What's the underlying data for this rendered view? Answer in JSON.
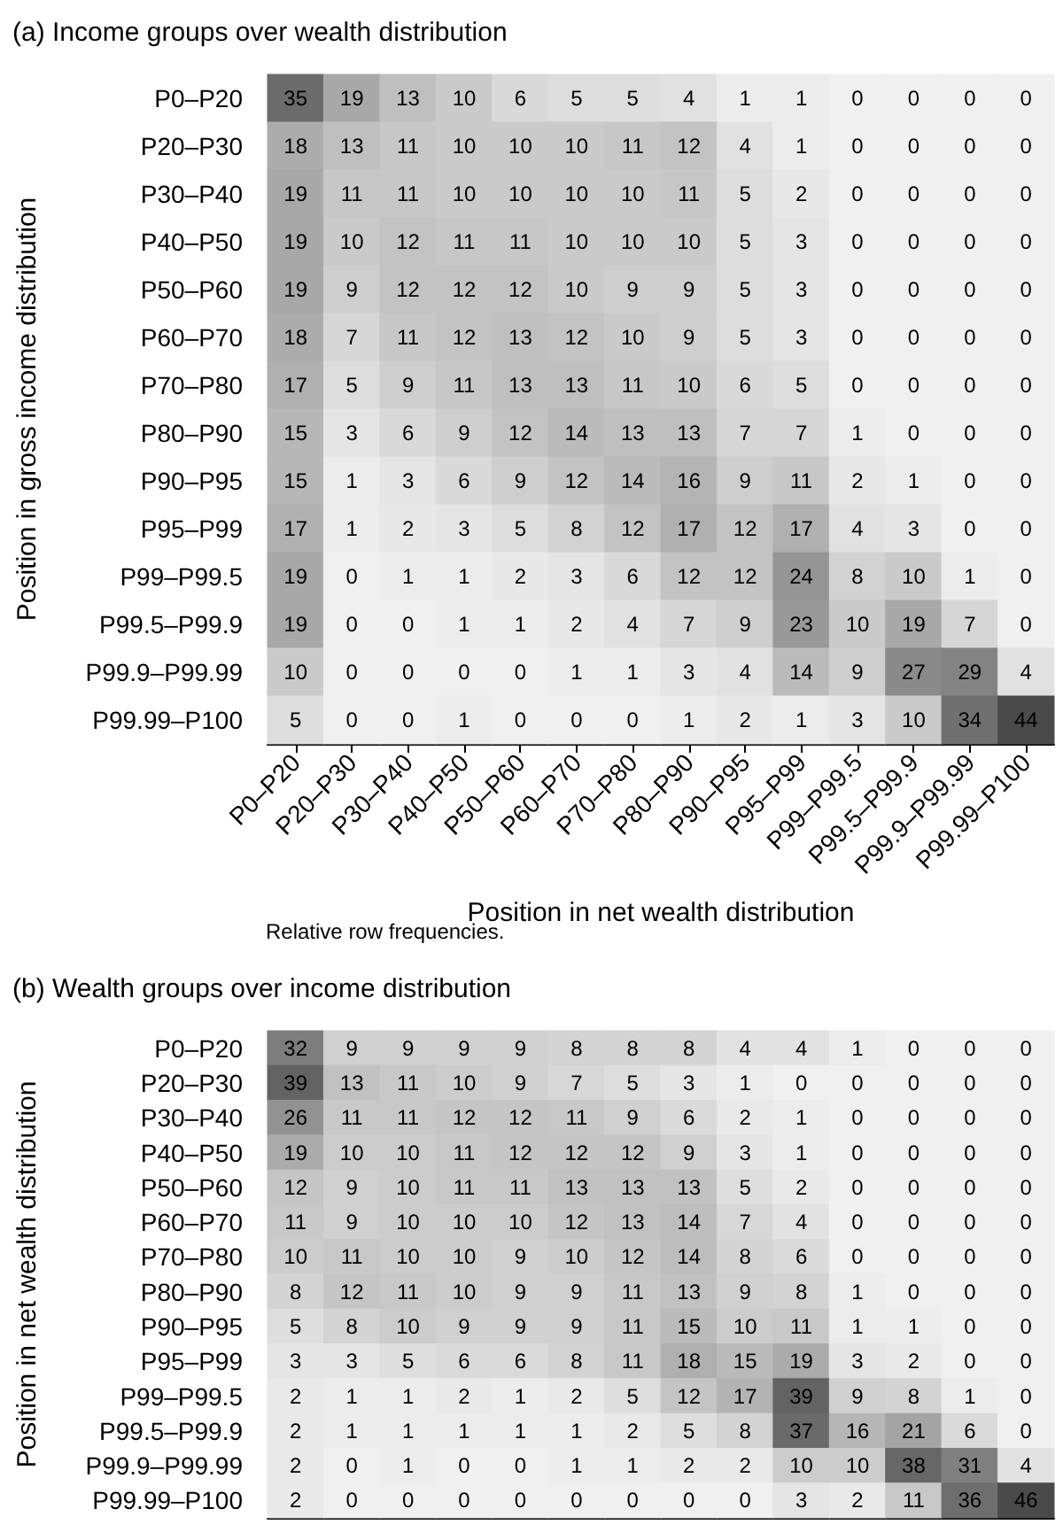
{
  "chart_data": [
    {
      "type": "heatmap",
      "title": "(a) Income groups over wealth distribution",
      "xlabel": "Position in net wealth distribution",
      "ylabel": "Position in gross income distribution",
      "annotations": [
        "Relative row frequencies."
      ],
      "data_labels": true,
      "categories": [
        "P0–P20",
        "P20–P30",
        "P30–P40",
        "P40–P50",
        "P50–P60",
        "P60–P70",
        "P70–P80",
        "P80–P90",
        "P90–P95",
        "P95–P99",
        "P99–P99.5",
        "P99.5–P99.9",
        "P99.9–P99.99",
        "P99.99–P100"
      ],
      "y_categories": [
        "P0–P20",
        "P20–P30",
        "P30–P40",
        "P40–P50",
        "P50–P60",
        "P60–P70",
        "P70–P80",
        "P80–P90",
        "P90–P95",
        "P95–P99",
        "P99–P99.5",
        "P99.5–P99.9",
        "P99.9–P99.99",
        "P99.99–P100"
      ],
      "cells": [
        [
          35,
          19,
          13,
          10,
          6,
          5,
          5,
          4,
          1,
          1,
          0,
          0,
          0,
          0
        ],
        [
          18,
          13,
          11,
          10,
          10,
          10,
          11,
          12,
          4,
          1,
          0,
          0,
          0,
          0
        ],
        [
          19,
          11,
          11,
          10,
          10,
          10,
          10,
          11,
          5,
          2,
          0,
          0,
          0,
          0
        ],
        [
          19,
          10,
          12,
          11,
          11,
          10,
          10,
          10,
          5,
          3,
          0,
          0,
          0,
          0
        ],
        [
          19,
          9,
          12,
          12,
          12,
          10,
          9,
          9,
          5,
          3,
          0,
          0,
          0,
          0
        ],
        [
          18,
          7,
          11,
          12,
          13,
          12,
          10,
          9,
          5,
          3,
          0,
          0,
          0,
          0
        ],
        [
          17,
          5,
          9,
          11,
          13,
          13,
          11,
          10,
          6,
          5,
          0,
          0,
          0,
          0
        ],
        [
          15,
          3,
          6,
          9,
          12,
          14,
          13,
          13,
          7,
          7,
          1,
          0,
          0,
          0
        ],
        [
          15,
          1,
          3,
          6,
          9,
          12,
          14,
          16,
          9,
          11,
          2,
          1,
          0,
          0
        ],
        [
          17,
          1,
          2,
          3,
          5,
          8,
          12,
          17,
          12,
          17,
          4,
          3,
          0,
          0
        ],
        [
          19,
          0,
          1,
          1,
          2,
          3,
          6,
          12,
          12,
          24,
          8,
          10,
          1,
          0
        ],
        [
          19,
          0,
          0,
          1,
          1,
          2,
          4,
          7,
          9,
          23,
          10,
          19,
          7,
          0
        ],
        [
          10,
          0,
          0,
          0,
          0,
          1,
          1,
          3,
          4,
          14,
          9,
          27,
          29,
          4
        ],
        [
          5,
          0,
          0,
          1,
          0,
          0,
          0,
          1,
          2,
          1,
          3,
          10,
          34,
          44
        ]
      ]
    },
    {
      "type": "heatmap",
      "title": "(b) Wealth groups over income distribution",
      "ylabel": "Position in net wealth distribution",
      "data_labels": true,
      "tick_labels": "y",
      "categories": [
        null,
        null,
        null,
        null,
        null,
        null,
        null,
        null,
        null,
        null,
        null,
        null,
        null,
        null
      ],
      "y_categories": [
        "P0–P20",
        "P20–P30",
        "P30–P40",
        "P40–P50",
        "P50–P60",
        "P60–P70",
        "P70–P80",
        "P80–P90",
        "P90–P95",
        "P95–P99",
        "P99–P99.5",
        "P99.5–P99.9",
        "P99.9–P99.99",
        "P99.99–P100"
      ],
      "cells": [
        [
          32,
          9,
          9,
          9,
          9,
          8,
          8,
          8,
          4,
          4,
          1,
          0,
          0,
          0
        ],
        [
          39,
          13,
          11,
          10,
          9,
          7,
          5,
          3,
          1,
          0,
          0,
          0,
          0,
          0
        ],
        [
          26,
          11,
          11,
          12,
          12,
          11,
          9,
          6,
          2,
          1,
          0,
          0,
          0,
          0
        ],
        [
          19,
          10,
          10,
          11,
          12,
          12,
          12,
          9,
          3,
          1,
          0,
          0,
          0,
          0
        ],
        [
          12,
          9,
          10,
          11,
          11,
          13,
          13,
          13,
          5,
          2,
          0,
          0,
          0,
          0
        ],
        [
          11,
          9,
          10,
          10,
          10,
          12,
          13,
          14,
          7,
          4,
          0,
          0,
          0,
          0
        ],
        [
          10,
          11,
          10,
          10,
          9,
          10,
          12,
          14,
          8,
          6,
          0,
          0,
          0,
          0
        ],
        [
          8,
          12,
          11,
          10,
          9,
          9,
          11,
          13,
          9,
          8,
          1,
          0,
          0,
          0
        ],
        [
          5,
          8,
          10,
          9,
          9,
          9,
          11,
          15,
          10,
          11,
          1,
          1,
          0,
          0
        ],
        [
          3,
          3,
          5,
          6,
          6,
          8,
          11,
          18,
          15,
          19,
          3,
          2,
          0,
          0
        ],
        [
          2,
          1,
          1,
          2,
          1,
          2,
          5,
          12,
          17,
          39,
          9,
          8,
          1,
          0
        ],
        [
          2,
          1,
          1,
          1,
          1,
          1,
          2,
          5,
          8,
          37,
          16,
          21,
          6,
          0
        ],
        [
          2,
          0,
          1,
          0,
          0,
          1,
          1,
          2,
          2,
          10,
          10,
          38,
          31,
          4
        ],
        [
          2,
          0,
          0,
          0,
          0,
          0,
          0,
          0,
          0,
          3,
          2,
          11,
          36,
          46
        ]
      ]
    }
  ]
}
